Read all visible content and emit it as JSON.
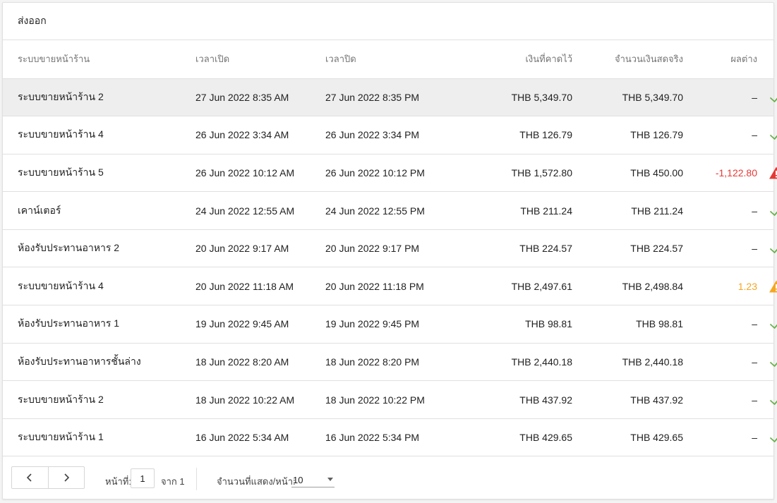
{
  "header": {
    "title": "ส่งออก"
  },
  "table": {
    "columns": {
      "register": "ระบบขายหน้าร้าน",
      "opened": "เวลาเปิด",
      "closed": "เวลาปิด",
      "expected": "เงินที่คาดไว้",
      "actual": "จำนวนเงินสดจริง",
      "difference": "ผลต่าง"
    },
    "rows": [
      {
        "register": "ระบบขายหน้าร้าน 2",
        "opened": "27 Jun 2022 8:35 AM",
        "closed": "27 Jun 2022 8:35 PM",
        "expected": "THB 5,349.70",
        "actual": "THB 5,349.70",
        "difference": "–",
        "status": "ok"
      },
      {
        "register": "ระบบขายหน้าร้าน 4",
        "opened": "26 Jun 2022 3:34 AM",
        "closed": "26 Jun 2022 3:34 PM",
        "expected": "THB 126.79",
        "actual": "THB 126.79",
        "difference": "–",
        "status": "ok"
      },
      {
        "register": "ระบบขายหน้าร้าน 5",
        "opened": "26 Jun 2022 10:12 AM",
        "closed": "26 Jun 2022 10:12 PM",
        "expected": "THB 1,572.80",
        "actual": "THB 450.00",
        "difference": "-1,122.80",
        "status": "error"
      },
      {
        "register": "เคาน์เตอร์",
        "opened": "24 Jun 2022 12:55 AM",
        "closed": "24 Jun 2022 12:55 PM",
        "expected": "THB 211.24",
        "actual": "THB 211.24",
        "difference": "–",
        "status": "ok"
      },
      {
        "register": "ห้องรับประทานอาหาร 2",
        "opened": "20 Jun 2022 9:17 AM",
        "closed": "20 Jun 2022 9:17 PM",
        "expected": "THB 224.57",
        "actual": "THB 224.57",
        "difference": "–",
        "status": "ok"
      },
      {
        "register": "ระบบขายหน้าร้าน 4",
        "opened": "20 Jun 2022 11:18 AM",
        "closed": "20 Jun 2022 11:18 PM",
        "expected": "THB 2,497.61",
        "actual": "THB 2,498.84",
        "difference": "1.23",
        "status": "warning"
      },
      {
        "register": "ห้องรับประทานอาหาร 1",
        "opened": "19 Jun 2022 9:45 AM",
        "closed": "19 Jun 2022 9:45 PM",
        "expected": "THB 98.81",
        "actual": "THB 98.81",
        "difference": "–",
        "status": "ok"
      },
      {
        "register": "ห้องรับประทานอาหารชั้นล่าง",
        "opened": "18 Jun 2022 8:20 AM",
        "closed": "18 Jun 2022 8:20 PM",
        "expected": "THB 2,440.18",
        "actual": "THB 2,440.18",
        "difference": "–",
        "status": "ok"
      },
      {
        "register": "ระบบขายหน้าร้าน 2",
        "opened": "18 Jun 2022 10:22 AM",
        "closed": "18 Jun 2022 10:22 PM",
        "expected": "THB 437.92",
        "actual": "THB 437.92",
        "difference": "–",
        "status": "ok"
      },
      {
        "register": "ระบบขายหน้าร้าน 1",
        "opened": "16 Jun 2022 5:34 AM",
        "closed": "16 Jun 2022 5:34 PM",
        "expected": "THB 429.65",
        "actual": "THB 429.65",
        "difference": "–",
        "status": "ok"
      }
    ]
  },
  "status_icons": {
    "ok": "check-icon",
    "error": "warning-triangle-icon",
    "warning": "warning-triangle-icon"
  },
  "colors": {
    "ok": "#6ab04c",
    "error": "#e53935",
    "warning": "#f5a623",
    "selected_row": "#eeeeee"
  },
  "pagination": {
    "page_label": "หน้าที่:",
    "page_value": "1",
    "of_label": "จาก 1",
    "per_page_label": "จำนวนที่แสดง/หน้า:",
    "per_page_value": "10"
  }
}
